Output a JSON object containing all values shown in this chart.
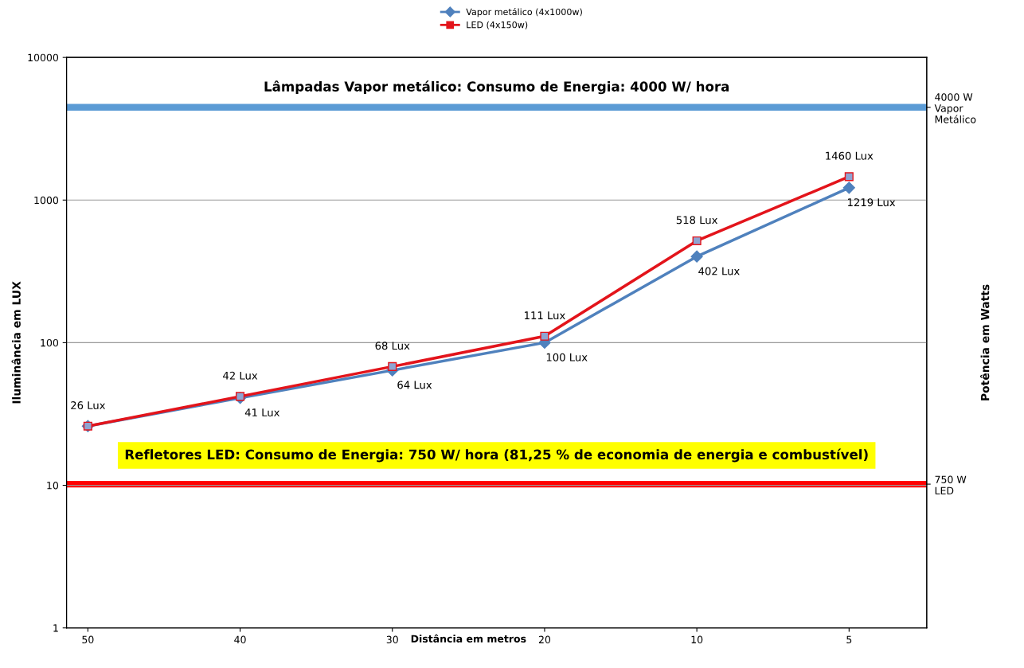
{
  "chart_data": {
    "type": "line",
    "xlabel": "Distância em metros",
    "ylabel": "Iluminância em LUX",
    "y2label": "Potência em Watts",
    "categories": [
      "50",
      "40",
      "30",
      "20",
      "10",
      "5"
    ],
    "series": [
      {
        "name": "Vapor metálico (4x1000w)",
        "color": "#4f81bd",
        "marker": "diamond",
        "values": [
          26,
          41,
          64,
          100,
          402,
          1219
        ],
        "value_labels": [
          null,
          "41 Lux",
          "64 Lux",
          "100 Lux",
          "402 Lux",
          "1219 Lux"
        ]
      },
      {
        "name": "LED (4x150w)",
        "color": "#e3141b",
        "marker": "square",
        "values": [
          26,
          42,
          68,
          111,
          518,
          1460
        ],
        "value_labels": [
          "26 Lux",
          "42 Lux",
          "68 Lux",
          "111 Lux",
          "518 Lux",
          "1460 Lux"
        ]
      }
    ],
    "log": "y",
    "ylim": [
      1,
      10000
    ],
    "yticks": [
      1,
      10,
      100,
      1000,
      10000
    ],
    "y2lim": [
      -490,
      4430
    ],
    "y2ticks": [
      {
        "value": 750,
        "label": "750 W\nLED"
      },
      {
        "value": 4000,
        "label": "4000 W\nVapor\nMetálico"
      }
    ],
    "ref_lines": [
      {
        "axis": "y2",
        "value": 4000,
        "label": "Lâmpadas Vapor metálico: Consumo de Energia: 4000 W/ hora",
        "color": "#5b9bd5"
      },
      {
        "axis": "y2",
        "value": 750,
        "label": "Refletores LED: Consumo de Energia: 750 W/ hora (81,25 % de economia de energia e combustível)",
        "color": "#ff0000"
      }
    ],
    "grid": "y",
    "legend": "top"
  }
}
